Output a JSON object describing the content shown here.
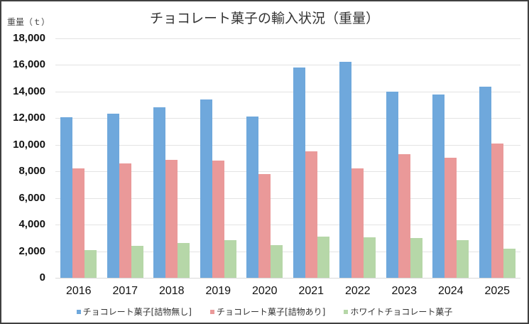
{
  "chart_data": {
    "type": "bar",
    "title": "チョコレート菓子の輸入状況（重量）",
    "ylabel": "重量（ｔ）",
    "xlabel": "",
    "ylim": [
      0,
      18000
    ],
    "yticks": [
      0,
      2000,
      4000,
      6000,
      8000,
      10000,
      12000,
      14000,
      16000,
      18000
    ],
    "ytick_labels": [
      "0",
      "2,000",
      "4,000",
      "6,000",
      "8,000",
      "10,000",
      "12,000",
      "14,000",
      "16,000",
      "18,000"
    ],
    "grid": true,
    "legend_position": "bottom",
    "categories": [
      "2016",
      "2017",
      "2018",
      "2019",
      "2020",
      "2021",
      "2022",
      "2023",
      "2024",
      "2025"
    ],
    "series": [
      {
        "name": "チョコレート菓子[詰物無し]",
        "color": "#6FA8DC",
        "values": [
          12090,
          12340,
          12840,
          13430,
          12120,
          15810,
          16230,
          14010,
          13790,
          14390
        ]
      },
      {
        "name": "チョコレート菓子[詰物あり]",
        "color": "#EA9999",
        "values": [
          8250,
          8590,
          8840,
          8800,
          7790,
          9520,
          8210,
          9310,
          9040,
          10110
        ]
      },
      {
        "name": "ホワイトチョコレート菓子",
        "color": "#B6D7A8",
        "values": [
          2100,
          2390,
          2620,
          2810,
          2440,
          3110,
          3030,
          3010,
          2850,
          2200
        ]
      }
    ]
  }
}
